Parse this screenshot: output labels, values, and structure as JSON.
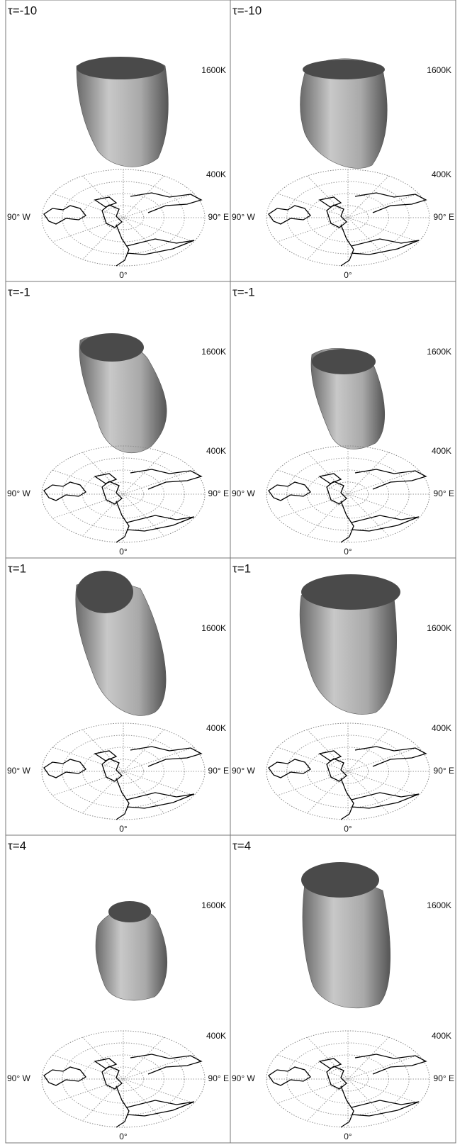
{
  "panels": [
    {
      "label": "τ=-10",
      "upper": "1600K",
      "lower": "400K",
      "west": "90° W",
      "east": "90° E",
      "south": "0°"
    },
    {
      "label": "τ=-10",
      "upper": "1600K",
      "lower": "400K",
      "west": "90° W",
      "east": "90° E",
      "south": "0°"
    },
    {
      "label": "τ=-1",
      "upper": "1600K",
      "lower": "400K",
      "west": "90° W",
      "east": "90° E",
      "south": "0°"
    },
    {
      "label": "τ=-1",
      "upper": "1600K",
      "lower": "400K",
      "west": "90° W",
      "east": "90° E",
      "south": "0°"
    },
    {
      "label": "τ=1",
      "upper": "1600K",
      "lower": "400K",
      "west": "90° W",
      "east": "90° E",
      "south": "0°"
    },
    {
      "label": "τ=1",
      "upper": "1600K",
      "lower": "400K",
      "west": "90° W",
      "east": "90° E",
      "south": "0°"
    },
    {
      "label": "τ=4",
      "upper": "1600K",
      "lower": "400K",
      "west": "90° W",
      "east": "90° E",
      "south": "0°"
    },
    {
      "label": "τ=4",
      "upper": "1600K",
      "lower": "400K",
      "west": "90° W",
      "east": "90° E",
      "south": "0°"
    }
  ]
}
